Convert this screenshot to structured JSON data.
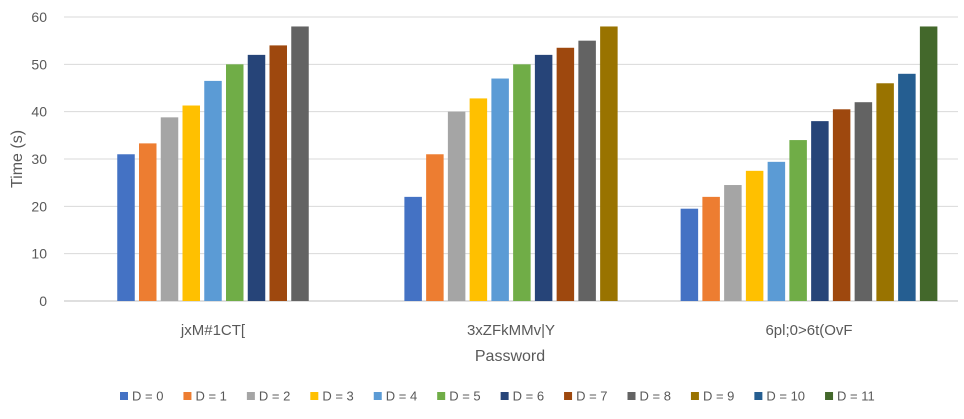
{
  "chart_data": {
    "type": "bar",
    "title": "",
    "xlabel": "Password",
    "ylabel": "Time (s)",
    "ylim": [
      0,
      60
    ],
    "yticks": [
      0,
      10,
      20,
      30,
      40,
      50,
      60
    ],
    "grid": true,
    "legend_position": "bottom",
    "categories": [
      "jxM#1CT[",
      "3xZFkMMv|Y",
      "6pl;0>6t(OvF"
    ],
    "series": [
      {
        "name": "D = 0",
        "color": "#4472C4",
        "values": [
          31,
          22,
          19.5
        ]
      },
      {
        "name": "D = 1",
        "color": "#ED7D31",
        "values": [
          33.3,
          31,
          22
        ]
      },
      {
        "name": "D = 2",
        "color": "#A5A5A5",
        "values": [
          38.8,
          40,
          24.5
        ]
      },
      {
        "name": "D = 3",
        "color": "#FFC000",
        "values": [
          41.3,
          42.8,
          27.5
        ]
      },
      {
        "name": "D = 4",
        "color": "#5B9BD5",
        "values": [
          46.5,
          47,
          29.4
        ]
      },
      {
        "name": "D = 5",
        "color": "#70AD47",
        "values": [
          50,
          50,
          34
        ]
      },
      {
        "name": "D = 6",
        "color": "#264478",
        "values": [
          52,
          52,
          38
        ]
      },
      {
        "name": "D = 7",
        "color": "#9E480E",
        "values": [
          54,
          53.5,
          40.5
        ]
      },
      {
        "name": "D = 8",
        "color": "#636363",
        "values": [
          58,
          55,
          42
        ]
      },
      {
        "name": "D = 9",
        "color": "#997300",
        "values": [
          null,
          58,
          46
        ]
      },
      {
        "name": "D = 10",
        "color": "#255E91",
        "values": [
          null,
          null,
          48
        ]
      },
      {
        "name": "D = 11",
        "color": "#43682B",
        "values": [
          null,
          null,
          58
        ]
      }
    ]
  }
}
